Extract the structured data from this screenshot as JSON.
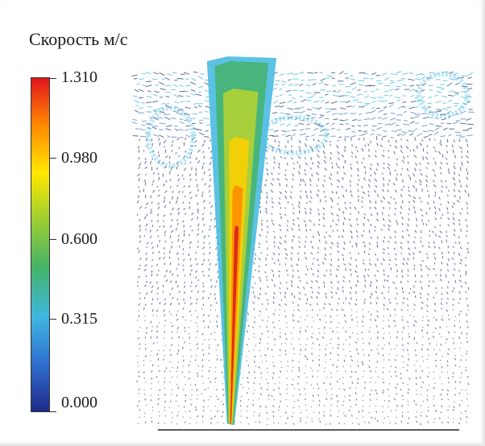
{
  "legend": {
    "title": "Скорость м/с",
    "ticks": [
      {
        "label": "1.310",
        "value": 1.31
      },
      {
        "label": "0.980",
        "value": 0.98
      },
      {
        "label": "0.600",
        "value": 0.6
      },
      {
        "label": "0.315",
        "value": 0.315
      },
      {
        "label": "0.000",
        "value": 0.0
      }
    ],
    "range": [
      0.0,
      1.31
    ],
    "gradient": [
      "#1f2a8a",
      "#2f6fd0",
      "#3fb7e0",
      "#43b36a",
      "#9acd32",
      "#ffe800",
      "#ff8a00",
      "#e0141e"
    ]
  },
  "field": {
    "vector_color": "#2b3f7a",
    "jet_colors": [
      "#3fb7e0",
      "#43b36a",
      "#b8d430",
      "#ffd000",
      "#ff8a00",
      "#d7191c"
    ]
  }
}
